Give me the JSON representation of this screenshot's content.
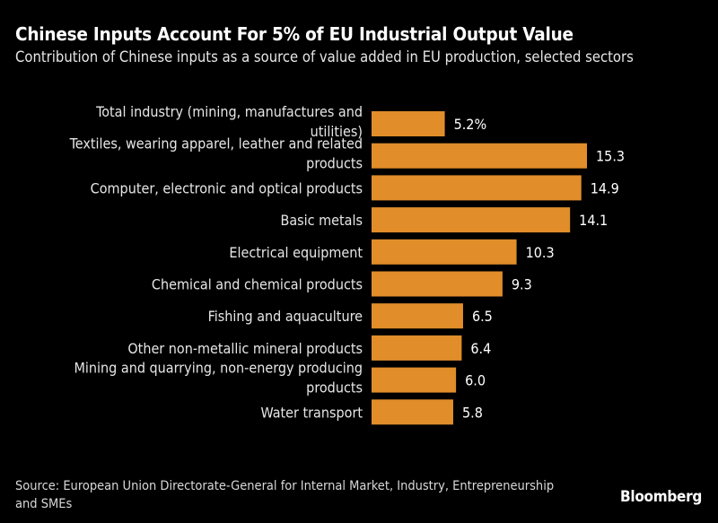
{
  "title": "Chinese Inputs Account For 5% of EU Industrial Output Value",
  "subtitle": "Contribution of Chinese inputs as a source of value added in EU production, selected sectors",
  "source": "Source: European Union Directorate-General for Internal Market, Industry, Entrepreneurship and SMEs",
  "logo": "Bloomberg",
  "chart_data": {
    "type": "bar",
    "orientation": "horizontal",
    "categories": [
      "Total industry (mining, manufactures and utilities)",
      "Textiles, wearing apparel, leather and related products",
      "Computer, electronic and optical products",
      "Basic metals",
      "Electrical equipment",
      "Chemical and chemical products",
      "Fishing and aquaculture",
      "Other non-metallic mineral products",
      "Mining and quarrying, non-energy producing products",
      "Water transport"
    ],
    "values": [
      5.2,
      15.3,
      14.9,
      14.1,
      10.3,
      9.3,
      6.5,
      6.4,
      6.0,
      5.8
    ],
    "data_labels": [
      "5.2%",
      "15.3",
      "14.9",
      "14.1",
      "10.3",
      "9.3",
      "6.5",
      "6.4",
      "6.0",
      "5.8"
    ],
    "unit": "%",
    "xlim": [
      0,
      15.3
    ],
    "grid": false,
    "bar_color": "#e08d2a"
  }
}
